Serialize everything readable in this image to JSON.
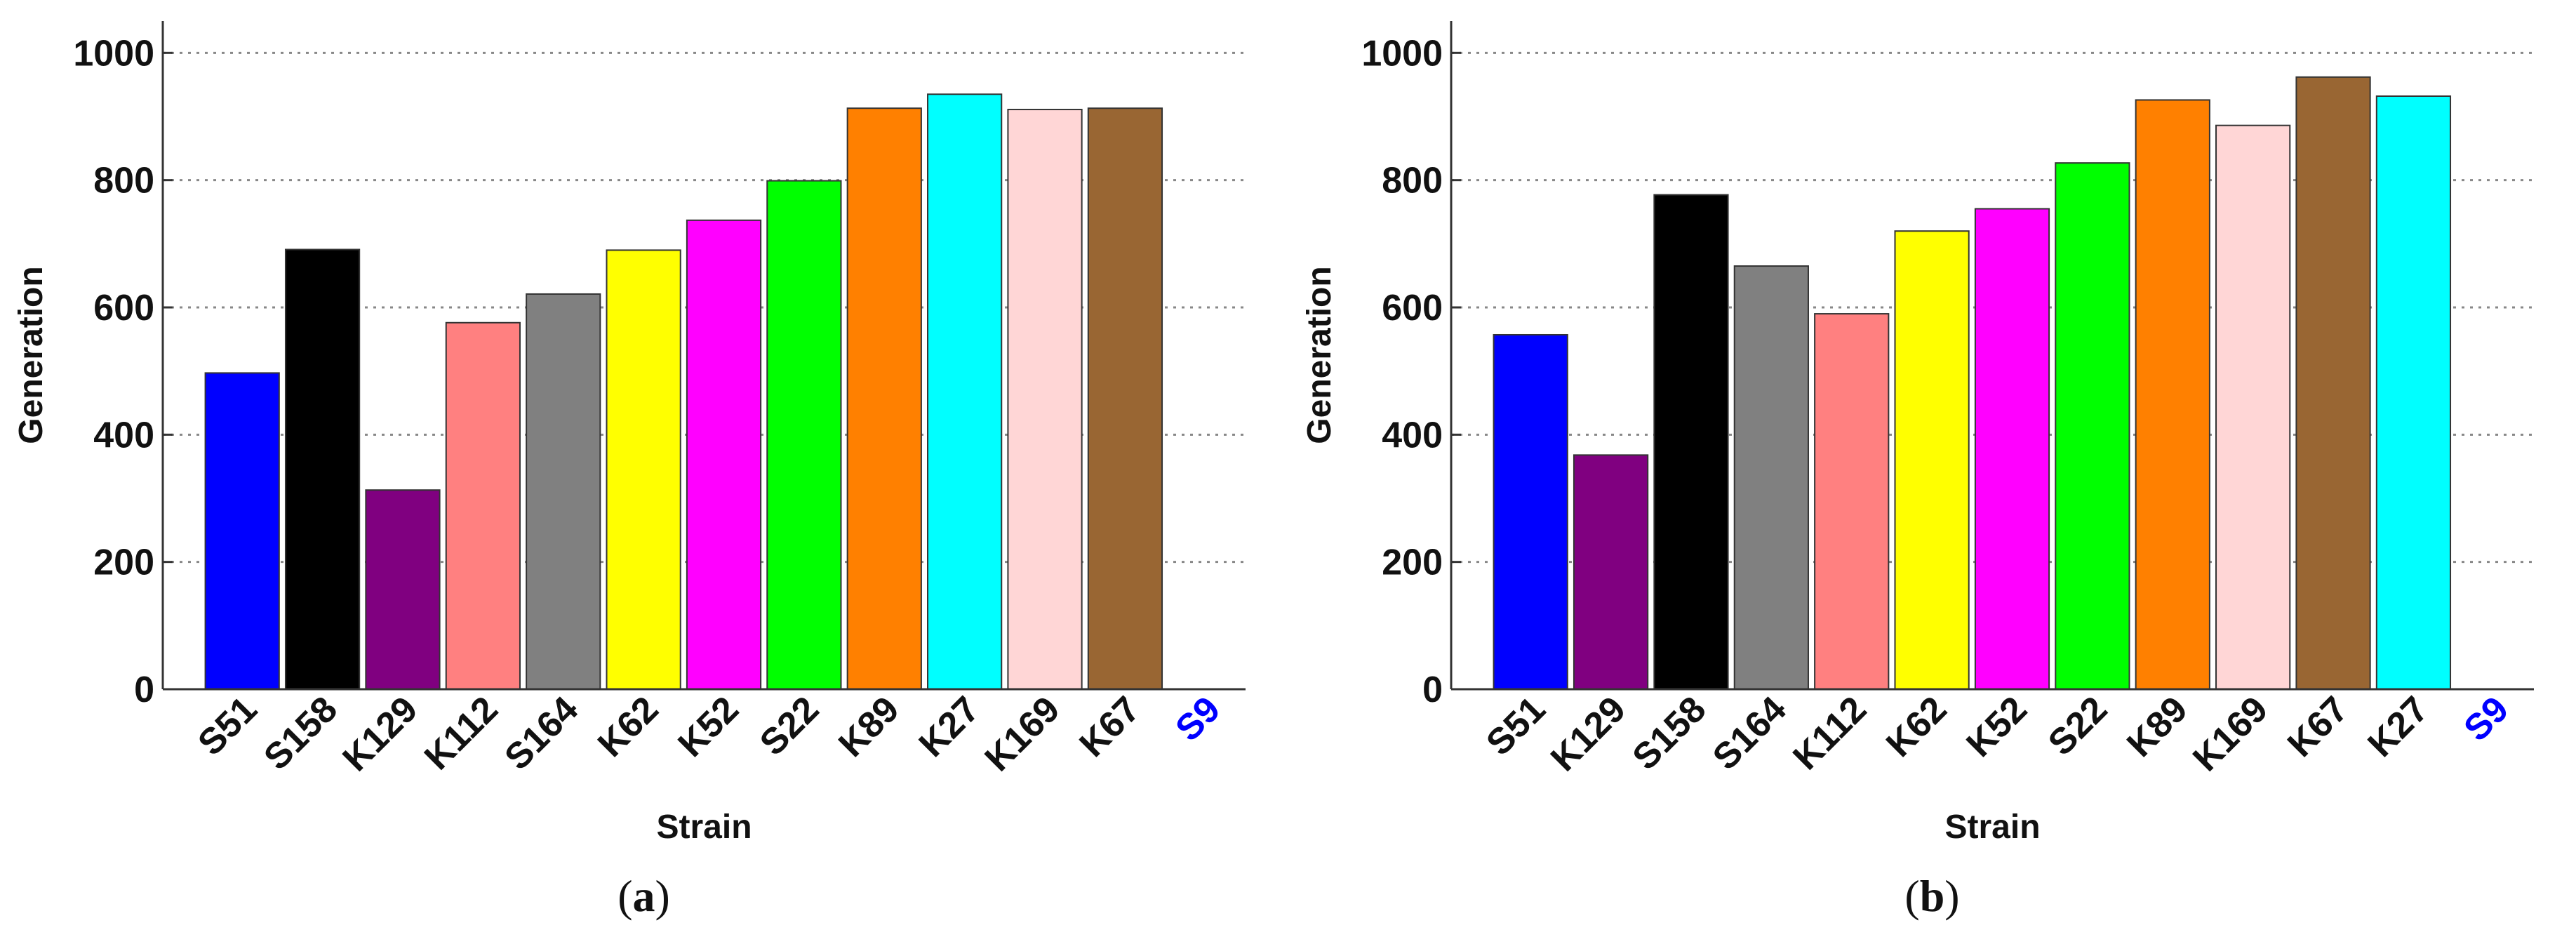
{
  "chart_data": [
    {
      "type": "bar",
      "panel": "(a)",
      "panel_letter": "a",
      "xlabel": "Strain",
      "ylabel": "Generation",
      "ylim": [
        0,
        1050
      ],
      "yticks": [
        0,
        200,
        400,
        600,
        800,
        1000
      ],
      "grid": "horizontal dotted",
      "categories": [
        "S51",
        "S158",
        "K129",
        "K112",
        "S164",
        "K62",
        "K52",
        "S22",
        "K89",
        "K27",
        "K169",
        "K67",
        "S9"
      ],
      "values": [
        497,
        691,
        313,
        576,
        621,
        690,
        737,
        799,
        913,
        935,
        911,
        913,
        0
      ],
      "colors": [
        "#0000ff",
        "#000000",
        "#800080",
        "#ff8080",
        "#808080",
        "#ffff00",
        "#ff00ff",
        "#00ff00",
        "#ff8000",
        "#00ffff",
        "#ffd6d6",
        "#996633",
        "#ffffff"
      ],
      "tick_label_colors": [
        "#111111",
        "#111111",
        "#111111",
        "#111111",
        "#111111",
        "#111111",
        "#111111",
        "#111111",
        "#111111",
        "#111111",
        "#111111",
        "#111111",
        "#0000ff"
      ]
    },
    {
      "type": "bar",
      "panel": "(b)",
      "panel_letter": "b",
      "xlabel": "Strain",
      "ylabel": "Generation",
      "ylim": [
        0,
        1050
      ],
      "yticks": [
        0,
        200,
        400,
        600,
        800,
        1000
      ],
      "grid": "horizontal dotted",
      "categories": [
        "S51",
        "K129",
        "S158",
        "S164",
        "K112",
        "K62",
        "K52",
        "S22",
        "K89",
        "K169",
        "K67",
        "K27",
        "S9"
      ],
      "values": [
        557,
        368,
        777,
        665,
        590,
        720,
        755,
        827,
        926,
        886,
        962,
        932,
        0
      ],
      "colors": [
        "#0000ff",
        "#800080",
        "#000000",
        "#808080",
        "#ff8080",
        "#ffff00",
        "#ff00ff",
        "#00ff00",
        "#ff8000",
        "#ffd6d6",
        "#996633",
        "#00ffff",
        "#ffffff"
      ],
      "tick_label_colors": [
        "#111111",
        "#111111",
        "#111111",
        "#111111",
        "#111111",
        "#111111",
        "#111111",
        "#111111",
        "#111111",
        "#111111",
        "#111111",
        "#111111",
        "#0000ff"
      ]
    }
  ]
}
